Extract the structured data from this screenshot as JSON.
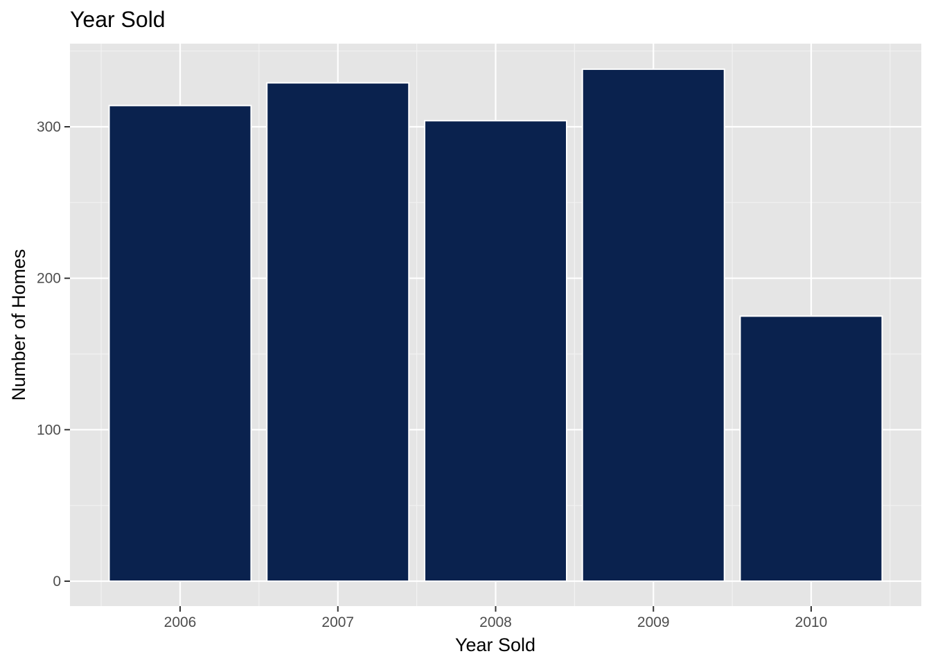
{
  "chart_data": {
    "type": "bar",
    "title": "Year Sold",
    "xlabel": "Year Sold",
    "ylabel": "Number of Homes",
    "categories": [
      "2006",
      "2007",
      "2008",
      "2009",
      "2010"
    ],
    "values": [
      314,
      329,
      304,
      338,
      175
    ],
    "ylim": [
      0,
      345
    ],
    "yticks": [
      0,
      100,
      200,
      300
    ],
    "ytick_labels": [
      "0",
      "100",
      "200",
      "300"
    ],
    "grid": true,
    "legend": "none",
    "colors": {
      "bar_fill": "#0a224e",
      "bar_outline": "#ffffff",
      "panel_background": "#e5e5e5",
      "grid_major": "#ffffff",
      "grid_minor": "#f2f2f2",
      "tick_label": "#4d4d4d",
      "tick_mark": "#333333"
    }
  }
}
